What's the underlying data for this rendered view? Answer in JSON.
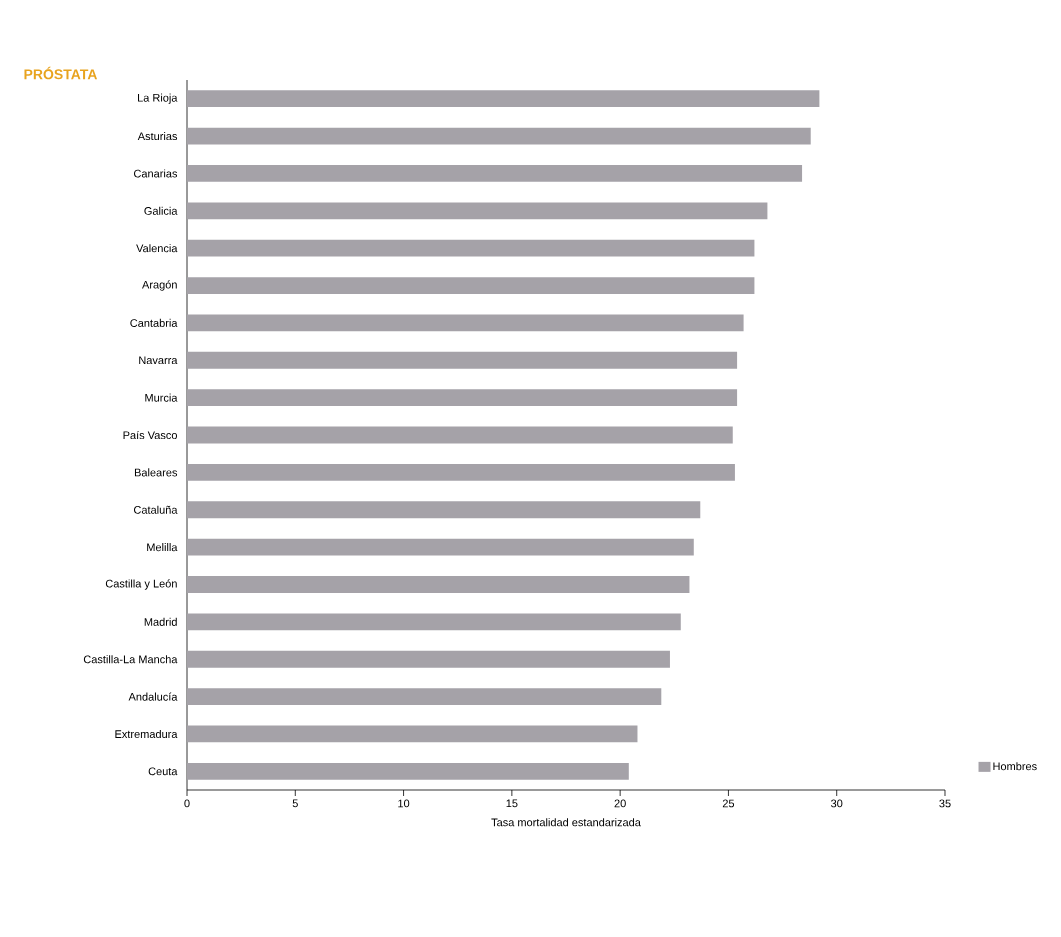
{
  "chart_data": {
    "type": "bar",
    "orientation": "horizontal",
    "title": "PRÓSTATA",
    "xlabel": "Tasa mortalidad estandarizada",
    "categories": [
      "La Rioja",
      "Asturias",
      "Canarias",
      "Galicia",
      "Valencia",
      "Aragón",
      "Cantabria",
      "Navarra",
      "Murcia",
      "País Vasco",
      "Baleares",
      "Cataluña",
      "Melilla",
      "Castilla y León",
      "Madrid",
      "Castilla-La Mancha",
      "Andalucía",
      "Extremadura",
      "Ceuta"
    ],
    "series": [
      {
        "name": "Hombres",
        "color": "#a5a2a8",
        "values": [
          29.2,
          28.8,
          28.4,
          26.8,
          26.2,
          26.2,
          25.7,
          25.4,
          25.4,
          25.2,
          25.3,
          23.7,
          23.4,
          23.2,
          22.8,
          22.3,
          21.9,
          20.8,
          20.4
        ]
      }
    ],
    "xlim": [
      0,
      35
    ],
    "xticks": [
      0,
      5,
      10,
      15,
      20,
      25,
      30,
      35
    ],
    "legend": "bottom right"
  }
}
